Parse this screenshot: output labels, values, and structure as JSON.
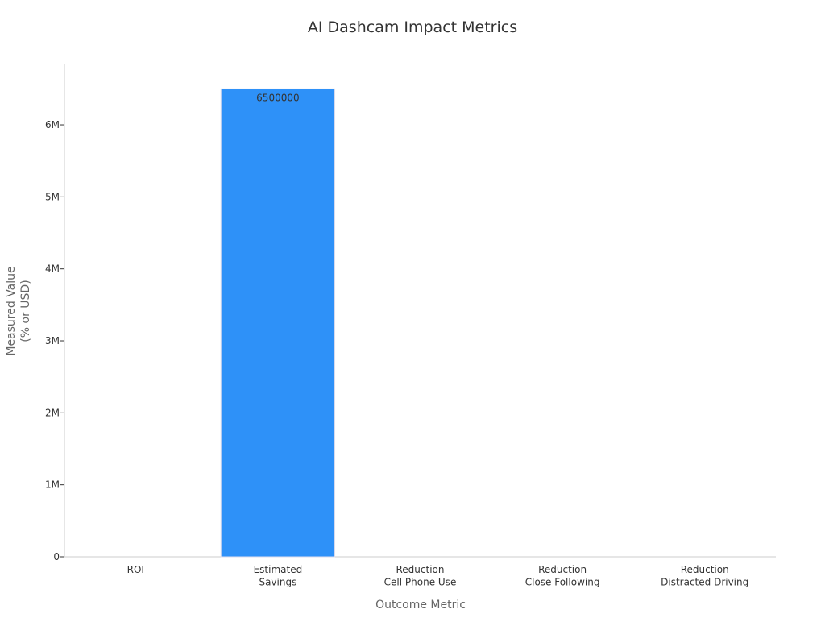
{
  "chart_data": {
    "type": "bar",
    "title": "AI Dashcam Impact Metrics",
    "x_label": "Outcome Metric",
    "y_label": "Measured Value\n(% or USD)",
    "categories": [
      "ROI",
      "Estimated\nSavings",
      "Reduction\nCell Phone Use",
      "Reduction\nClose Following",
      "Reduction\nDistracted Driving"
    ],
    "values": [
      0,
      6500000,
      0,
      0,
      0
    ],
    "value_labels": [
      null,
      "6500000",
      null,
      null,
      null
    ],
    "color": "#2e91f8",
    "ylim": [
      0,
      6840000
    ],
    "yticks": [
      0,
      {
        "value": 1000000,
        "label": "1M"
      },
      {
        "value": 2000000,
        "label": "2M"
      },
      {
        "value": 3000000,
        "label": "3M"
      },
      {
        "value": 4000000,
        "label": "4M"
      },
      {
        "value": 5000000,
        "label": "5M"
      },
      {
        "value": 6000000,
        "label": "6M"
      }
    ],
    "grid": false
  }
}
